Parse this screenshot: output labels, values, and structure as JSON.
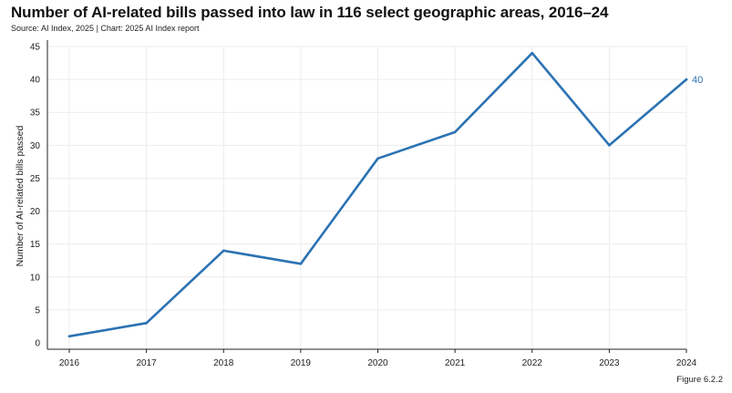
{
  "header": {
    "title": "Number of AI-related bills passed into law in 116 select geographic areas, 2016–24",
    "source": "Source: AI Index, 2025 | Chart: 2025 AI Index report"
  },
  "footer": {
    "figure": "Figure 6.2.2"
  },
  "colors": {
    "line": "#2b72b3",
    "grid": "#ececec",
    "axis": "#222222"
  },
  "chart_data": {
    "type": "line",
    "title": "Number of AI-related bills passed into law in 116 select geographic areas, 2016–24",
    "xlabel": "",
    "ylabel": "Number of AI-related bills passed",
    "x": [
      "2016",
      "2017",
      "2018",
      "2019",
      "2020",
      "2021",
      "2022",
      "2023",
      "2024"
    ],
    "series": [
      {
        "name": "AI-related bills passed",
        "values": [
          1,
          3,
          14,
          12,
          28,
          32,
          44,
          30,
          40
        ]
      }
    ],
    "ylim": [
      0,
      45
    ],
    "yticks": [
      0,
      5,
      10,
      15,
      20,
      25,
      30,
      35,
      40,
      45
    ],
    "end_label": "40",
    "grid": true
  }
}
